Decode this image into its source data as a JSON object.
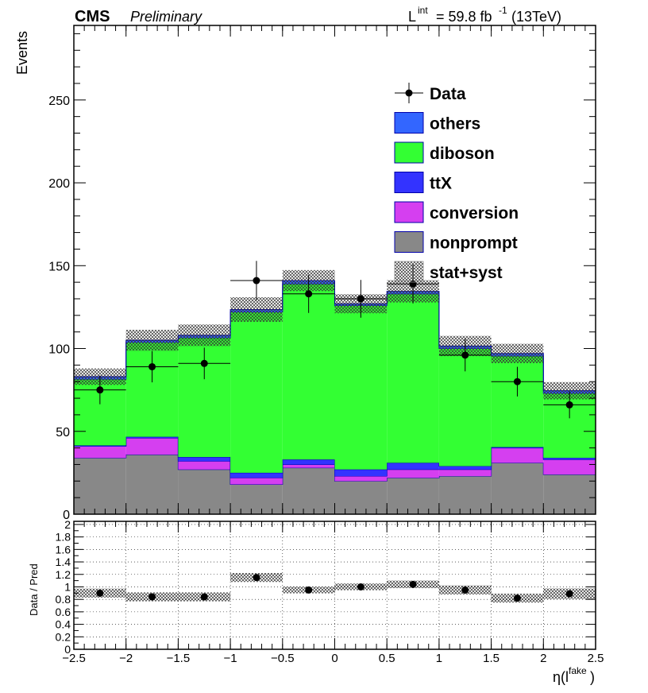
{
  "header": {
    "experiment": "CMS",
    "status": "Preliminary",
    "lumi_main": "L",
    "lumi_sup": "int",
    "lumi_value": " = 59.8 fb",
    "lumi_unit_sup": "-1",
    "lumi_energy": " (13TeV)"
  },
  "chart_data": {
    "type": "bar",
    "stacked": true,
    "x_bin_edges": [
      -2.5,
      -2.0,
      -1.5,
      -1.0,
      -0.5,
      0.0,
      0.5,
      1.0,
      1.5,
      2.0,
      2.5
    ],
    "series": [
      {
        "name": "nonprompt",
        "color": "#888888",
        "values": [
          34,
          36,
          27,
          18,
          28,
          20,
          22,
          23,
          31,
          24
        ]
      },
      {
        "name": "conversion",
        "color": "#d53ff0",
        "values": [
          7,
          10,
          5,
          4,
          2,
          3,
          5,
          4,
          9,
          9
        ]
      },
      {
        "name": "ttX",
        "color": "#3333ff",
        "values": [
          0.5,
          0.7,
          2.5,
          3,
          3,
          4,
          4,
          2,
          0.5,
          1
        ]
      },
      {
        "name": "diboson",
        "color": "#33ff33",
        "values": [
          40,
          57,
          72,
          97,
          106,
          99,
          102,
          71,
          55,
          39
        ]
      },
      {
        "name": "others",
        "color": "#3366ff",
        "values": [
          1.5,
          1.3,
          1.5,
          1.5,
          2,
          1,
          1.5,
          1.5,
          1.5,
          1.5
        ]
      }
    ],
    "data": {
      "name": "Data",
      "x": [
        -2.25,
        -1.75,
        -1.25,
        -0.75,
        -0.25,
        0.25,
        0.75,
        1.25,
        1.75,
        2.25
      ],
      "y": [
        75,
        89,
        91,
        141,
        133,
        130,
        139,
        96,
        80,
        66
      ]
    },
    "uncertainty": {
      "name": "stat+syst",
      "relative": [
        0.06,
        0.06,
        0.06,
        0.06,
        0.045,
        0.045,
        0.05,
        0.06,
        0.06,
        0.07
      ]
    },
    "ylabel": "Events",
    "xlabel": "η(l",
    "xlabel_sup": "fake",
    "xlabel_close": ")",
    "ylim": [
      0,
      295
    ],
    "yticks": [
      0,
      50,
      100,
      150,
      200,
      250
    ],
    "legend_position": "top-right",
    "ratio": {
      "ylabel": "Data / Pred",
      "ylim": [
        0,
        2.05
      ],
      "yticks": [
        0,
        0.2,
        0.4,
        0.6,
        0.8,
        1,
        1.2,
        1.4,
        1.6,
        1.8,
        2
      ],
      "values": [
        0.9,
        0.84,
        0.84,
        1.15,
        0.95,
        1.0,
        1.04,
        0.95,
        0.82,
        0.89
      ],
      "band": [
        0.06,
        0.06,
        0.06,
        0.06,
        0.045,
        0.045,
        0.05,
        0.06,
        0.06,
        0.07
      ]
    },
    "xticks": [
      -2.5,
      -2,
      -1.5,
      -1,
      -0.5,
      0,
      0.5,
      1,
      1.5,
      2,
      2.5
    ]
  }
}
